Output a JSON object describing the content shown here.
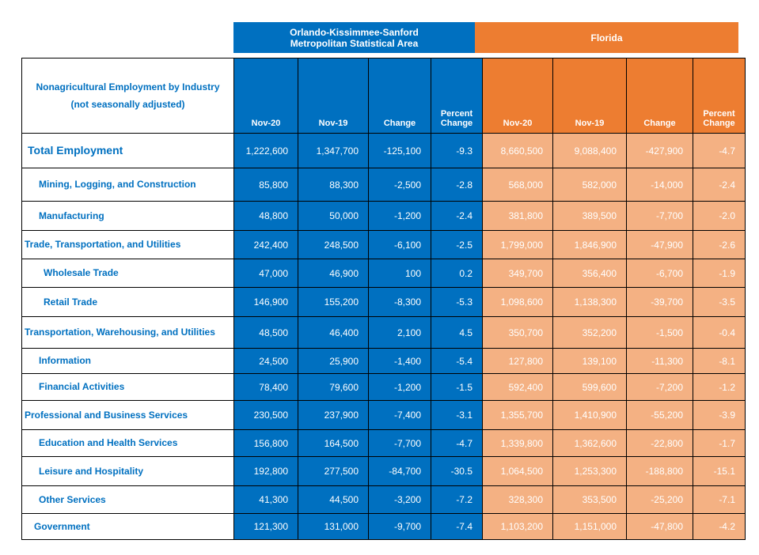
{
  "banners": {
    "msa": "Orlando-Kissimmee-Sanford\nMetropolitan Statistical Area",
    "florida": "Florida"
  },
  "header": {
    "label": "Nonagricultural Employment by Industry\n(not seasonally adjusted)",
    "columns": [
      "Nov-20",
      "Nov-19",
      "Change",
      "Percent Change",
      "Nov-20",
      "Nov-19",
      "Change",
      "Percent Change"
    ]
  },
  "rows": [
    {
      "label": "Total Employment",
      "values": [
        "1,222,600",
        "1,347,700",
        "-125,100",
        "-9.3",
        "8,660,500",
        "9,088,400",
        "-427,900",
        "-4.7"
      ]
    },
    {
      "label": "Mining, Logging, and Construction",
      "values": [
        "85,800",
        "88,300",
        "-2,500",
        "-2.8",
        "568,000",
        "582,000",
        "-14,000",
        "-2.4"
      ]
    },
    {
      "label": "Manufacturing",
      "values": [
        "48,800",
        "50,000",
        "-1,200",
        "-2.4",
        "381,800",
        "389,500",
        "-7,700",
        "-2.0"
      ]
    },
    {
      "label": "Trade, Transportation, and Utilities",
      "values": [
        "242,400",
        "248,500",
        "-6,100",
        "-2.5",
        "1,799,000",
        "1,846,900",
        "-47,900",
        "-2.6"
      ]
    },
    {
      "label": "Wholesale Trade",
      "values": [
        "47,000",
        "46,900",
        "100",
        "0.2",
        "349,700",
        "356,400",
        "-6,700",
        "-1.9"
      ]
    },
    {
      "label": "Retail Trade",
      "values": [
        "146,900",
        "155,200",
        "-8,300",
        "-5.3",
        "1,098,600",
        "1,138,300",
        "-39,700",
        "-3.5"
      ]
    },
    {
      "label": "Transportation, Warehousing, and Utilities",
      "values": [
        "48,500",
        "46,400",
        "2,100",
        "4.5",
        "350,700",
        "352,200",
        "-1,500",
        "-0.4"
      ]
    },
    {
      "label": "Information",
      "values": [
        "24,500",
        "25,900",
        "-1,400",
        "-5.4",
        "127,800",
        "139,100",
        "-11,300",
        "-8.1"
      ]
    },
    {
      "label": "Financial Activities",
      "values": [
        "78,400",
        "79,600",
        "-1,200",
        "-1.5",
        "592,400",
        "599,600",
        "-7,200",
        "-1.2"
      ]
    },
    {
      "label": "Professional and Business Services",
      "values": [
        "230,500",
        "237,900",
        "-7,400",
        "-3.1",
        "1,355,700",
        "1,410,900",
        "-55,200",
        "-3.9"
      ]
    },
    {
      "label": "Education and Health Services",
      "values": [
        "156,800",
        "164,500",
        "-7,700",
        "-4.7",
        "1,339,800",
        "1,362,600",
        "-22,800",
        "-1.7"
      ]
    },
    {
      "label": "Leisure and Hospitality",
      "values": [
        "192,800",
        "277,500",
        "-84,700",
        "-30.5",
        "1,064,500",
        "1,253,300",
        "-188,800",
        "-15.1"
      ]
    },
    {
      "label": "Other Services",
      "values": [
        "41,300",
        "44,500",
        "-3,200",
        "-7.2",
        "328,300",
        "353,500",
        "-25,200",
        "-7.1"
      ]
    },
    {
      "label": "Government",
      "values": [
        "121,300",
        "131,000",
        "-9,700",
        "-7.4",
        "1,103,200",
        "1,151,000",
        "-47,800",
        "-4.2"
      ]
    }
  ],
  "colors": {
    "msa_blue": "#0070C0",
    "florida_orange": "#ED7D31",
    "florida_light": "#F4B183",
    "label_text": "#0070C0"
  }
}
